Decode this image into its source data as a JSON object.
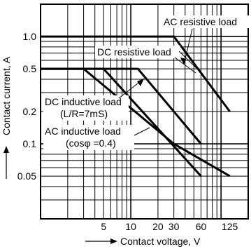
{
  "chart_data": {
    "type": "line",
    "xlabel": "Contact voltage, V",
    "ylabel": "Contact current, A",
    "x_scale": "log",
    "y_scale": "log",
    "xlim": [
      1,
      200
    ],
    "ylim": [
      0.02,
      2
    ],
    "grid": true,
    "x_ticks": [
      {
        "value": 5,
        "label": "5"
      },
      {
        "value": 10,
        "label": "10"
      },
      {
        "value": 20,
        "label": "20"
      },
      {
        "value": 30,
        "label": "30"
      },
      {
        "value": 60,
        "label": "60"
      },
      {
        "value": 125,
        "label": "125"
      }
    ],
    "y_ticks": [
      {
        "value": 1.0,
        "label": "1.0"
      },
      {
        "value": 0.5,
        "label": "0.5"
      },
      {
        "value": 0.2,
        "label": "0.2"
      },
      {
        "value": 0.1,
        "label": "0.1"
      },
      {
        "value": 0.05,
        "label": "0.05"
      }
    ],
    "series": [
      {
        "name": "AC resistive load",
        "points": [
          [
            1,
            1.0
          ],
          [
            30,
            1.0
          ],
          [
            125,
            0.2
          ]
        ]
      },
      {
        "name": "DC resistive load",
        "points": [
          [
            1,
            0.5
          ],
          [
            12,
            0.5
          ],
          [
            60,
            0.1
          ]
        ]
      },
      {
        "name": "DC inductive load (L/R=7mS)",
        "points": [
          [
            1,
            0.5
          ],
          [
            5,
            0.5
          ],
          [
            60,
            0.05
          ]
        ]
      },
      {
        "name": "AC inductive load (cosφ =0.4)",
        "points": [
          [
            1,
            0.5
          ],
          [
            3,
            0.5
          ],
          [
            30,
            0.1
          ],
          [
            125,
            0.05
          ]
        ]
      }
    ],
    "annotations": [
      {
        "text": "AC resistive load",
        "target_series": 0
      },
      {
        "text": "DC resistive load",
        "target_series": 1
      },
      {
        "text": "DC inductive load",
        "target_series": 2
      },
      {
        "text": "(L/R=7mS)",
        "target_series": 2
      },
      {
        "text": "AC inductive load",
        "target_series": 3
      },
      {
        "text": "(cosφ =0.4)",
        "target_series": 3
      }
    ]
  }
}
